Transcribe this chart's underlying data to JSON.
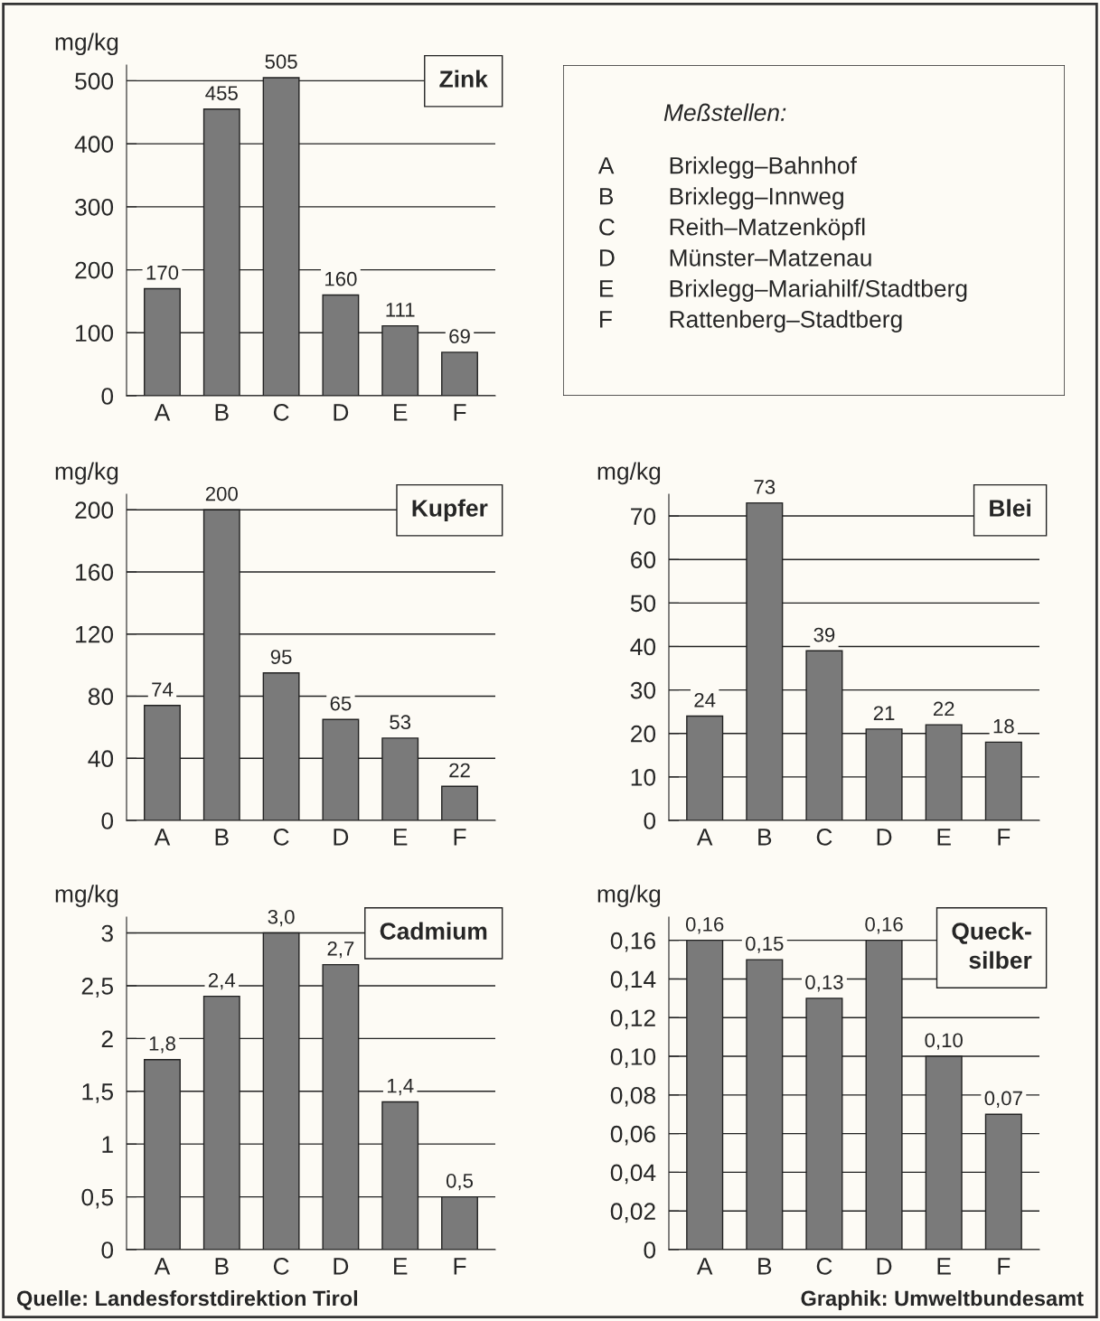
{
  "chart_data": [
    {
      "type": "bar",
      "title": "Zink",
      "ylabel": "mg/kg",
      "categories": [
        "A",
        "B",
        "C",
        "D",
        "E",
        "F"
      ],
      "values": [
        170,
        455,
        505,
        160,
        111,
        69
      ],
      "color": "#7a7a7a",
      "ylim": [
        0,
        525
      ],
      "yticks": [
        0,
        100,
        200,
        300,
        400,
        500
      ],
      "grid": "y",
      "data_labels": true
    },
    {
      "type": "other",
      "title": "Meßstellen:",
      "categories": [
        "A",
        "B",
        "C",
        "D",
        "E",
        "F"
      ],
      "annotations": [
        "Brixlegg–Bahnhof",
        "Brixlegg–Innweg",
        "Reith–Matzenköpfl",
        "Münster–Matzenau",
        "Brixlegg–Mariahilf/Stadtberg",
        "Rattenberg–Stadtberg"
      ]
    },
    {
      "type": "bar",
      "title": "Kupfer",
      "ylabel": "mg/kg",
      "categories": [
        "A",
        "B",
        "C",
        "D",
        "E",
        "F"
      ],
      "values": [
        74,
        200,
        95,
        65,
        53,
        22
      ],
      "color": "#7a7a7a",
      "ylim": [
        0,
        210
      ],
      "yticks": [
        0,
        40,
        80,
        120,
        160,
        200
      ],
      "grid": "y",
      "data_labels": true
    },
    {
      "type": "bar",
      "title": "Blei",
      "ylabel": "mg/kg",
      "categories": [
        "A",
        "B",
        "C",
        "D",
        "E",
        "F"
      ],
      "values": [
        24,
        73,
        39,
        21,
        22,
        18
      ],
      "color": "#7a7a7a",
      "ylim": [
        0,
        75
      ],
      "yticks": [
        0,
        10,
        20,
        30,
        40,
        50,
        60,
        70
      ],
      "grid": "y",
      "data_labels": true
    },
    {
      "type": "bar",
      "title": "Cadmium",
      "ylabel": "mg/kg",
      "categories": [
        "A",
        "B",
        "C",
        "D",
        "E",
        "F"
      ],
      "values": [
        1.8,
        2.4,
        3.0,
        2.7,
        1.4,
        0.5
      ],
      "value_labels": [
        "1,8",
        "2,4",
        "3,0",
        "2,7",
        "1,4",
        "0,5"
      ],
      "color": "#7a7a7a",
      "ylim": [
        0,
        3.15
      ],
      "yticks": [
        0,
        {
          "value": 0.5,
          "label": "0,5"
        },
        1,
        {
          "value": 1.5,
          "label": "1,5"
        },
        2,
        {
          "value": 2.5,
          "label": "2,5"
        },
        3
      ],
      "grid": "y",
      "annotations": [
        "Quelle: Landesforstdirektion Tirol"
      ]
    },
    {
      "type": "bar",
      "title": "Queck-\nsilber",
      "ylabel": "mg/kg",
      "categories": [
        "A",
        "B",
        "C",
        "D",
        "E",
        "F"
      ],
      "values": [
        0.16,
        0.15,
        0.13,
        0.16,
        0.1,
        0.07
      ],
      "value_labels": [
        "0,16",
        "0,15",
        "0,13",
        "0,16",
        "0,10",
        "0,07"
      ],
      "color": "#7a7a7a",
      "ylim": [
        0,
        0.172
      ],
      "yticks": [
        0,
        {
          "value": 0.02,
          "label": "0,02"
        },
        {
          "value": 0.04,
          "label": "0,04"
        },
        {
          "value": 0.06,
          "label": "0,06"
        },
        {
          "value": 0.08,
          "label": "0,08"
        },
        {
          "value": 0.1,
          "label": "0,10"
        },
        {
          "value": 0.12,
          "label": "0,12"
        },
        {
          "value": 0.14,
          "label": "0,14"
        },
        {
          "value": 0.16,
          "label": "0,16"
        }
      ],
      "grid": "y",
      "annotations": [
        "Graphik: Umweltbundesamt"
      ]
    }
  ]
}
